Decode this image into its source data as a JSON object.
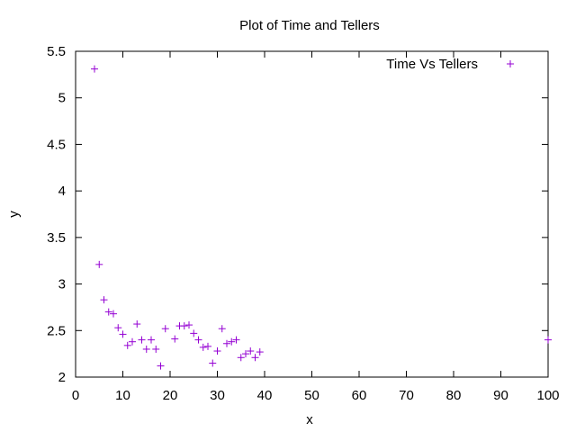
{
  "chart_data": {
    "type": "scatter",
    "title": "Plot of Time and Tellers",
    "xlabel": "x",
    "ylabel": "y",
    "xlim": [
      0,
      100
    ],
    "ylim": [
      2,
      5.5
    ],
    "xticks": [
      0,
      10,
      20,
      30,
      40,
      50,
      60,
      70,
      80,
      90,
      100
    ],
    "xtick_labels": [
      "0",
      "10",
      "20",
      "30",
      "40",
      "50",
      "60",
      "70",
      "80",
      "90",
      "100"
    ],
    "yticks": [
      2,
      2.5,
      3,
      3.5,
      4,
      4.5,
      5,
      5.5
    ],
    "ytick_labels": [
      "2",
      "2.5",
      "3",
      "3.5",
      "4",
      "4.5",
      "5",
      "5.5"
    ],
    "grid": false,
    "legend_position": "top-right",
    "series": [
      {
        "name": "Time Vs Tellers",
        "color": "#9400d3",
        "marker": "plus",
        "x": [
          4,
          5,
          6,
          7,
          8,
          9,
          10,
          11,
          12,
          13,
          14,
          15,
          16,
          17,
          18,
          19,
          21,
          22,
          23,
          24,
          25,
          26,
          27,
          28,
          29,
          30,
          31,
          32,
          33,
          34,
          35,
          36,
          37,
          38,
          39,
          100
        ],
        "y": [
          5.31,
          3.21,
          2.83,
          2.7,
          2.68,
          2.53,
          2.46,
          2.34,
          2.38,
          2.57,
          2.4,
          2.3,
          2.4,
          2.3,
          2.12,
          2.52,
          2.41,
          2.55,
          2.55,
          2.56,
          2.47,
          2.4,
          2.32,
          2.33,
          2.15,
          2.28,
          2.52,
          2.36,
          2.38,
          2.4,
          2.21,
          2.25,
          2.28,
          2.21,
          2.27,
          2.4
        ]
      }
    ]
  }
}
